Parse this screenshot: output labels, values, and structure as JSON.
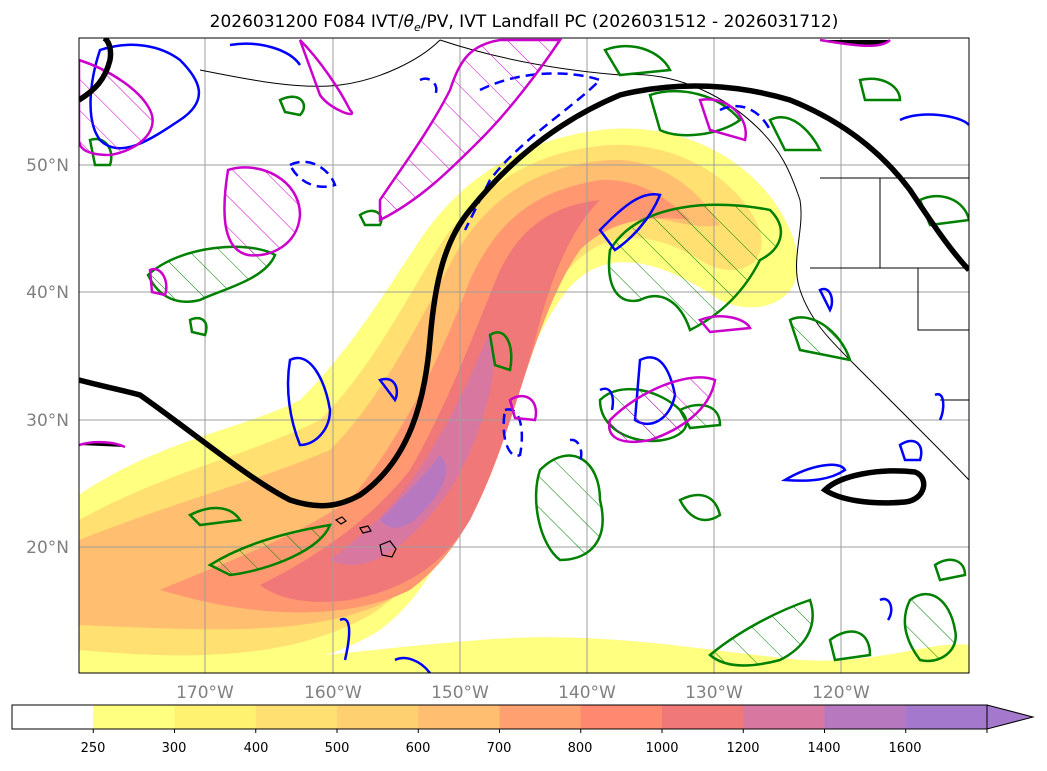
{
  "title": "2026031200 F084 IVT/θe/PV, IVT Landfall PC (2026031512 - 2026031712)",
  "title_parts": {
    "prefix": "2026031200 F084 IVT/",
    "theta": "θ",
    "theta_sub": "e",
    "suffix": "/PV, IVT Landfall PC (2026031512 - 2026031712)"
  },
  "map": {
    "lat_labels": [
      "50°N",
      "40°N",
      "30°N",
      "20°N"
    ],
    "lon_labels": [
      "170°W",
      "160°W",
      "150°W",
      "140°W",
      "130°W",
      "120°W"
    ],
    "grid": true,
    "region": "North Pacific / U.S. West Coast"
  },
  "colorbar": {
    "levels": [
      "250",
      "300",
      "400",
      "500",
      "600",
      "700",
      "800",
      "1000",
      "1200",
      "1400",
      "1600"
    ],
    "colors": [
      "#ffffff",
      "#ffff80",
      "#fff270",
      "#ffe070",
      "#ffd070",
      "#ffbe70",
      "#ffa070",
      "#ff8870",
      "#f07878",
      "#d878a0",
      "#b878c0",
      "#a478cc"
    ],
    "extend": "max"
  },
  "colors": {
    "jet_contour": "#000000",
    "theta_e_positive": "#0000ff",
    "pv": "#cc00cc",
    "landfall_pc": "#008000"
  }
}
